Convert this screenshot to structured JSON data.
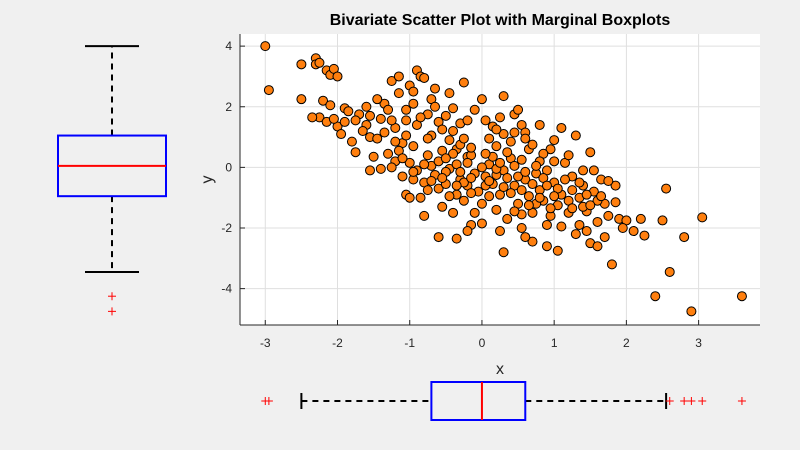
{
  "chart_data": {
    "type": "scatter",
    "title": "Bivariate Scatter Plot with Marginal Boxplots",
    "xlabel": "x",
    "ylabel": "y",
    "xlim": [
      -3.35,
      3.85
    ],
    "ylim": [
      -5.2,
      4.4
    ],
    "xticks": [
      -3,
      -2,
      -1,
      0,
      1,
      2,
      3
    ],
    "yticks": [
      -4,
      -2,
      0,
      2,
      4
    ],
    "grid": true,
    "marker_color": "#ff7f0e",
    "marker_edge": "#000000",
    "points": [
      [
        -3.0,
        4.0
      ],
      [
        -2.95,
        2.55
      ],
      [
        -2.5,
        3.4
      ],
      [
        -2.5,
        2.25
      ],
      [
        -2.3,
        3.6
      ],
      [
        -2.3,
        3.4
      ],
      [
        -2.25,
        3.45
      ],
      [
        -2.15,
        3.2
      ],
      [
        -2.1,
        3.05
      ],
      [
        -2.05,
        3.25
      ],
      [
        -2.0,
        3.0
      ],
      [
        -2.25,
        1.65
      ],
      [
        -2.2,
        2.2
      ],
      [
        -2.1,
        2.05
      ],
      [
        -2.0,
        1.35
      ],
      [
        -2.15,
        1.5
      ],
      [
        -2.05,
        1.6
      ],
      [
        -1.9,
        1.95
      ],
      [
        -1.85,
        1.85
      ],
      [
        -1.95,
        1.1
      ],
      [
        -1.8,
        0.85
      ],
      [
        -1.75,
        0.5
      ],
      [
        -1.6,
        1.4
      ],
      [
        -1.55,
        1.0
      ],
      [
        -1.7,
        1.75
      ],
      [
        -1.5,
        0.35
      ],
      [
        -1.4,
        1.6
      ],
      [
        -1.35,
        2.1
      ],
      [
        -1.3,
        1.9
      ],
      [
        -1.25,
        2.85
      ],
      [
        -1.15,
        3.0
      ],
      [
        -1.2,
        1.3
      ],
      [
        -1.1,
        0.8
      ],
      [
        -1.05,
        1.05
      ],
      [
        -1.0,
        2.7
      ],
      [
        -0.95,
        2.5
      ],
      [
        -0.9,
        3.2
      ],
      [
        -0.85,
        3.0
      ],
      [
        -0.8,
        2.95
      ],
      [
        -0.75,
        1.75
      ],
      [
        -0.7,
        2.25
      ],
      [
        -0.65,
        2.0
      ],
      [
        -0.6,
        1.5
      ],
      [
        -0.55,
        1.25
      ],
      [
        -0.5,
        1.7
      ],
      [
        -0.45,
        0.9
      ],
      [
        -0.4,
        1.2
      ],
      [
        -0.35,
        0.6
      ],
      [
        -0.3,
        0.75
      ],
      [
        -0.2,
        0.35
      ],
      [
        -0.1,
        1.9
      ],
      [
        0.0,
        2.25
      ],
      [
        0.05,
        1.55
      ],
      [
        0.1,
        0.95
      ],
      [
        0.15,
        1.35
      ],
      [
        0.2,
        0.7
      ],
      [
        0.3,
        1.1
      ],
      [
        0.3,
        2.35
      ],
      [
        0.4,
        0.85
      ],
      [
        0.45,
        1.75
      ],
      [
        0.5,
        1.9
      ],
      [
        0.55,
        1.4
      ],
      [
        0.6,
        1.15
      ],
      [
        0.65,
        0.6
      ],
      [
        -1.55,
        -0.1
      ],
      [
        -1.4,
        -0.05
      ],
      [
        -1.3,
        0.45
      ],
      [
        -1.2,
        0.2
      ],
      [
        -1.1,
        -0.3
      ],
      [
        -1.05,
        -0.9
      ],
      [
        -1.0,
        0.15
      ],
      [
        -0.95,
        -0.4
      ],
      [
        -0.9,
        -0.1
      ],
      [
        -0.85,
        -1.0
      ],
      [
        -0.8,
        -0.5
      ],
      [
        -0.75,
        0.4
      ],
      [
        -0.7,
        0.05
      ],
      [
        -0.65,
        -0.25
      ],
      [
        -0.6,
        -0.7
      ],
      [
        -0.55,
        -1.3
      ],
      [
        -0.5,
        -0.55
      ],
      [
        -0.45,
        -0.05
      ],
      [
        -0.4,
        -1.5
      ],
      [
        -0.35,
        -0.9
      ],
      [
        -0.3,
        -0.4
      ],
      [
        -0.25,
        -1.1
      ],
      [
        -0.2,
        -0.6
      ],
      [
        -0.15,
        -1.9
      ],
      [
        -0.1,
        -0.2
      ],
      [
        -0.05,
        -0.8
      ],
      [
        0.0,
        -1.2
      ],
      [
        0.05,
        -0.3
      ],
      [
        0.1,
        0.1
      ],
      [
        0.15,
        -0.55
      ],
      [
        0.2,
        -1.4
      ],
      [
        0.25,
        -0.9
      ],
      [
        0.3,
        -0.1
      ],
      [
        0.35,
        -1.7
      ],
      [
        0.4,
        0.3
      ],
      [
        0.45,
        -0.6
      ],
      [
        0.5,
        -1.2
      ],
      [
        0.55,
        -2.0
      ],
      [
        0.6,
        -0.4
      ],
      [
        0.65,
        -0.95
      ],
      [
        0.7,
        -1.5
      ],
      [
        0.75,
        -0.2
      ],
      [
        0.8,
        -0.75
      ],
      [
        0.85,
        -1.1
      ],
      [
        0.9,
        -1.9
      ],
      [
        0.95,
        0.6
      ],
      [
        1.0,
        -0.5
      ],
      [
        1.05,
        -1.25
      ],
      [
        1.1,
        -0.9
      ],
      [
        1.15,
        0.15
      ],
      [
        1.2,
        -1.5
      ],
      [
        1.25,
        -0.3
      ],
      [
        1.3,
        -2.2
      ],
      [
        1.35,
        -1.0
      ],
      [
        1.4,
        -0.6
      ],
      [
        1.45,
        -1.45
      ],
      [
        1.5,
        -2.5
      ],
      [
        1.55,
        -0.8
      ],
      [
        1.6,
        -1.8
      ],
      [
        1.65,
        -0.4
      ],
      [
        1.7,
        -1.2
      ],
      [
        1.75,
        -1.6
      ],
      [
        1.8,
        -3.2
      ],
      [
        1.85,
        -0.6
      ],
      [
        1.9,
        -1.7
      ],
      [
        2.0,
        -1.75
      ],
      [
        2.1,
        -2.1
      ],
      [
        2.25,
        -2.25
      ],
      [
        2.4,
        -4.25
      ],
      [
        2.5,
        -1.75
      ],
      [
        2.55,
        -0.7
      ],
      [
        2.6,
        -3.45
      ],
      [
        2.8,
        -2.3
      ],
      [
        2.9,
        -4.75
      ],
      [
        3.05,
        -1.65
      ],
      [
        3.6,
        -4.25
      ],
      [
        1.0,
        0.9
      ],
      [
        1.1,
        1.3
      ],
      [
        1.2,
        0.4
      ],
      [
        1.4,
        -0.1
      ],
      [
        1.5,
        0.5
      ],
      [
        1.55,
        -0.1
      ],
      [
        1.3,
        1.05
      ],
      [
        1.45,
        -0.9
      ],
      [
        1.6,
        -1.1
      ],
      [
        0.85,
        0.45
      ],
      [
        -0.45,
        2.45
      ],
      [
        -0.3,
        1.45
      ],
      [
        -0.25,
        2.8
      ],
      [
        -0.15,
        0.4
      ],
      [
        0.25,
        1.65
      ],
      [
        0.45,
        1.15
      ],
      [
        0.7,
        0.75
      ],
      [
        0.8,
        0.2
      ],
      [
        0.9,
        -0.1
      ],
      [
        1.0,
        0.2
      ],
      [
        1.15,
        -0.4
      ],
      [
        1.25,
        -0.75
      ],
      [
        1.35,
        -1.9
      ],
      [
        1.45,
        -2.1
      ],
      [
        1.6,
        -2.6
      ],
      [
        1.7,
        -2.3
      ],
      [
        1.95,
        -2.0
      ],
      [
        2.2,
        -1.7
      ],
      [
        1.05,
        -2.75
      ],
      [
        0.9,
        -2.6
      ],
      [
        0.7,
        -2.45
      ],
      [
        0.6,
        -2.3
      ],
      [
        0.3,
        -2.8
      ],
      [
        0.25,
        -2.1
      ],
      [
        0.0,
        -1.85
      ],
      [
        -0.1,
        -1.5
      ],
      [
        -0.2,
        -2.1
      ],
      [
        -0.35,
        -2.35
      ],
      [
        -0.6,
        -2.3
      ],
      [
        -0.8,
        -1.6
      ],
      [
        -1.0,
        -1.0
      ],
      [
        -0.75,
        -0.75
      ],
      [
        -0.5,
        -0.15
      ],
      [
        -0.35,
        0.1
      ],
      [
        -0.15,
        0.65
      ],
      [
        0.15,
        0.35
      ],
      [
        0.35,
        0.5
      ],
      [
        0.55,
        0.25
      ],
      [
        0.75,
        0.05
      ],
      [
        0.5,
        -0.3
      ],
      [
        -1.9,
        1.5
      ],
      [
        -1.65,
        1.2
      ],
      [
        -1.45,
        0.95
      ],
      [
        -1.25,
        1.55
      ],
      [
        -1.05,
        1.9
      ],
      [
        -0.9,
        1.4
      ],
      [
        -0.7,
        1.05
      ],
      [
        -0.55,
        0.55
      ],
      [
        -0.25,
        0.95
      ],
      [
        0.05,
        0.45
      ],
      [
        -1.6,
        2.0
      ],
      [
        -1.45,
        2.25
      ],
      [
        -1.15,
        2.45
      ],
      [
        -0.95,
        2.1
      ],
      [
        -0.65,
        2.6
      ],
      [
        -0.4,
        1.95
      ],
      [
        -0.2,
        1.55
      ],
      [
        0.2,
        1.25
      ],
      [
        0.6,
        0.95
      ],
      [
        0.8,
        1.4
      ],
      [
        -0.7,
        -0.45
      ],
      [
        -0.45,
        -0.95
      ],
      [
        -0.25,
        -0.5
      ],
      [
        0.05,
        -0.6
      ],
      [
        0.2,
        -0.25
      ],
      [
        0.4,
        -0.85
      ],
      [
        0.55,
        -1.55
      ],
      [
        0.75,
        -1.2
      ],
      [
        0.95,
        -1.6
      ],
      [
        1.1,
        -1.95
      ],
      [
        -0.6,
        0.2
      ],
      [
        -0.4,
        0.45
      ],
      [
        -0.2,
        0.15
      ],
      [
        0.0,
        0.0
      ],
      [
        0.2,
        -0.05
      ],
      [
        0.35,
        -0.35
      ],
      [
        0.1,
        -0.95
      ],
      [
        -0.15,
        -0.35
      ],
      [
        -0.3,
        -0.15
      ],
      [
        -0.5,
        0.3
      ],
      [
        -2.35,
        1.65
      ],
      [
        -1.75,
        1.55
      ],
      [
        -1.55,
        1.7
      ],
      [
        -1.35,
        1.15
      ],
      [
        -1.15,
        0.55
      ],
      [
        -0.95,
        0.7
      ],
      [
        -0.75,
        0.95
      ],
      [
        -0.85,
        1.65
      ],
      [
        -1.05,
        1.55
      ],
      [
        -1.2,
        0.85
      ],
      [
        1.75,
        -0.45
      ],
      [
        1.85,
        -1.15
      ],
      [
        1.65,
        -0.95
      ],
      [
        1.4,
        -1.3
      ],
      [
        1.2,
        -1.1
      ],
      [
        1.05,
        -0.7
      ],
      [
        0.95,
        -1.35
      ],
      [
        0.8,
        -1.0
      ],
      [
        0.65,
        -1.25
      ],
      [
        0.45,
        -1.45
      ],
      [
        -1.25,
        0.0
      ],
      [
        -1.1,
        0.3
      ],
      [
        -0.95,
        -0.15
      ],
      [
        -0.8,
        0.1
      ],
      [
        -0.55,
        -0.35
      ],
      [
        -0.35,
        -0.6
      ],
      [
        -0.15,
        -0.85
      ],
      [
        0.1,
        -0.45
      ],
      [
        0.3,
        -0.65
      ],
      [
        0.55,
        -0.75
      ],
      [
        0.25,
        0.15
      ],
      [
        0.45,
        0.05
      ],
      [
        0.6,
        -0.15
      ],
      [
        0.85,
        -0.35
      ],
      [
        1.0,
        -0.95
      ],
      [
        1.25,
        -1.35
      ],
      [
        1.5,
        -1.25
      ],
      [
        1.35,
        -0.5
      ],
      [
        0.7,
        -0.55
      ],
      [
        0.9,
        -0.6
      ]
    ],
    "marginal_y_boxplot": {
      "q1": -0.95,
      "median": 0.05,
      "q3": 1.05,
      "whisker_low": -3.45,
      "whisker_high": 4.0,
      "outliers": [
        -4.25,
        -4.75
      ]
    },
    "marginal_x_boxplot": {
      "q1": -0.7,
      "median": 0.0,
      "q3": 0.6,
      "whisker_low": -2.5,
      "whisker_high": 2.55,
      "outliers": [
        -3.0,
        -2.95,
        2.6,
        2.8,
        2.9,
        3.05,
        3.6
      ]
    },
    "box_color": "#0000ff",
    "median_color": "#ff0000",
    "whisker_color": "#000000",
    "outlier_color": "#ff0000"
  }
}
